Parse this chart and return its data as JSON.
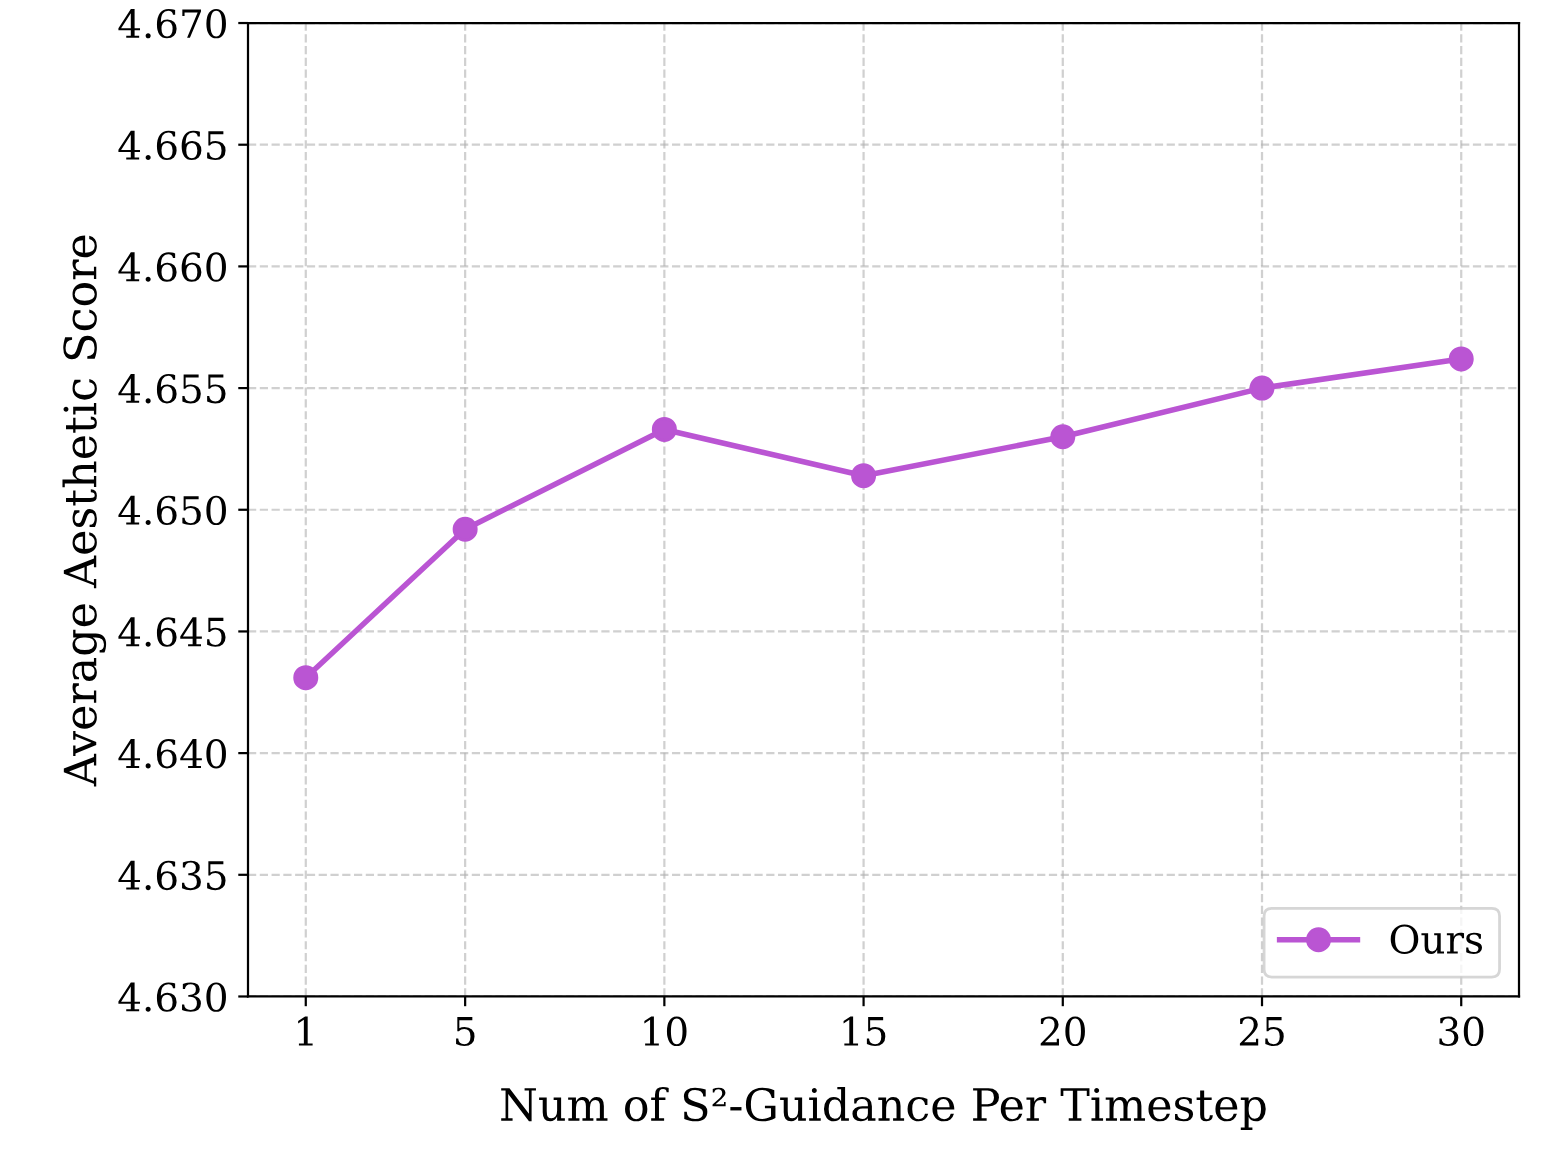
{
  "chart_data": {
    "type": "line",
    "xlabel": "Num of S²-Guidance Per Timestep",
    "ylabel": "Average Aesthetic Score",
    "x": [
      1,
      5,
      10,
      15,
      20,
      25,
      30
    ],
    "series": [
      {
        "name": "Ours",
        "color": "#ba55d3",
        "values": [
          4.6431,
          4.6492,
          4.6533,
          4.6514,
          4.653,
          4.655,
          4.6562
        ]
      }
    ],
    "xlim": [
      -0.45,
      31.45
    ],
    "xticks": [
      1,
      5,
      10,
      15,
      20,
      25,
      30
    ],
    "ylim": [
      4.63,
      4.67
    ],
    "yticks": [
      {
        "value": 4.63,
        "label": "4.630"
      },
      {
        "value": 4.635,
        "label": "4.635"
      },
      {
        "value": 4.64,
        "label": "4.640"
      },
      {
        "value": 4.645,
        "label": "4.645"
      },
      {
        "value": 4.65,
        "label": "4.650"
      },
      {
        "value": 4.655,
        "label": "4.655"
      },
      {
        "value": 4.66,
        "label": "4.660"
      },
      {
        "value": 4.665,
        "label": "4.665"
      },
      {
        "value": 4.67,
        "label": "4.670"
      }
    ],
    "grid": true,
    "legend": "bottom right",
    "marker": "circle",
    "line_style": "solid"
  }
}
